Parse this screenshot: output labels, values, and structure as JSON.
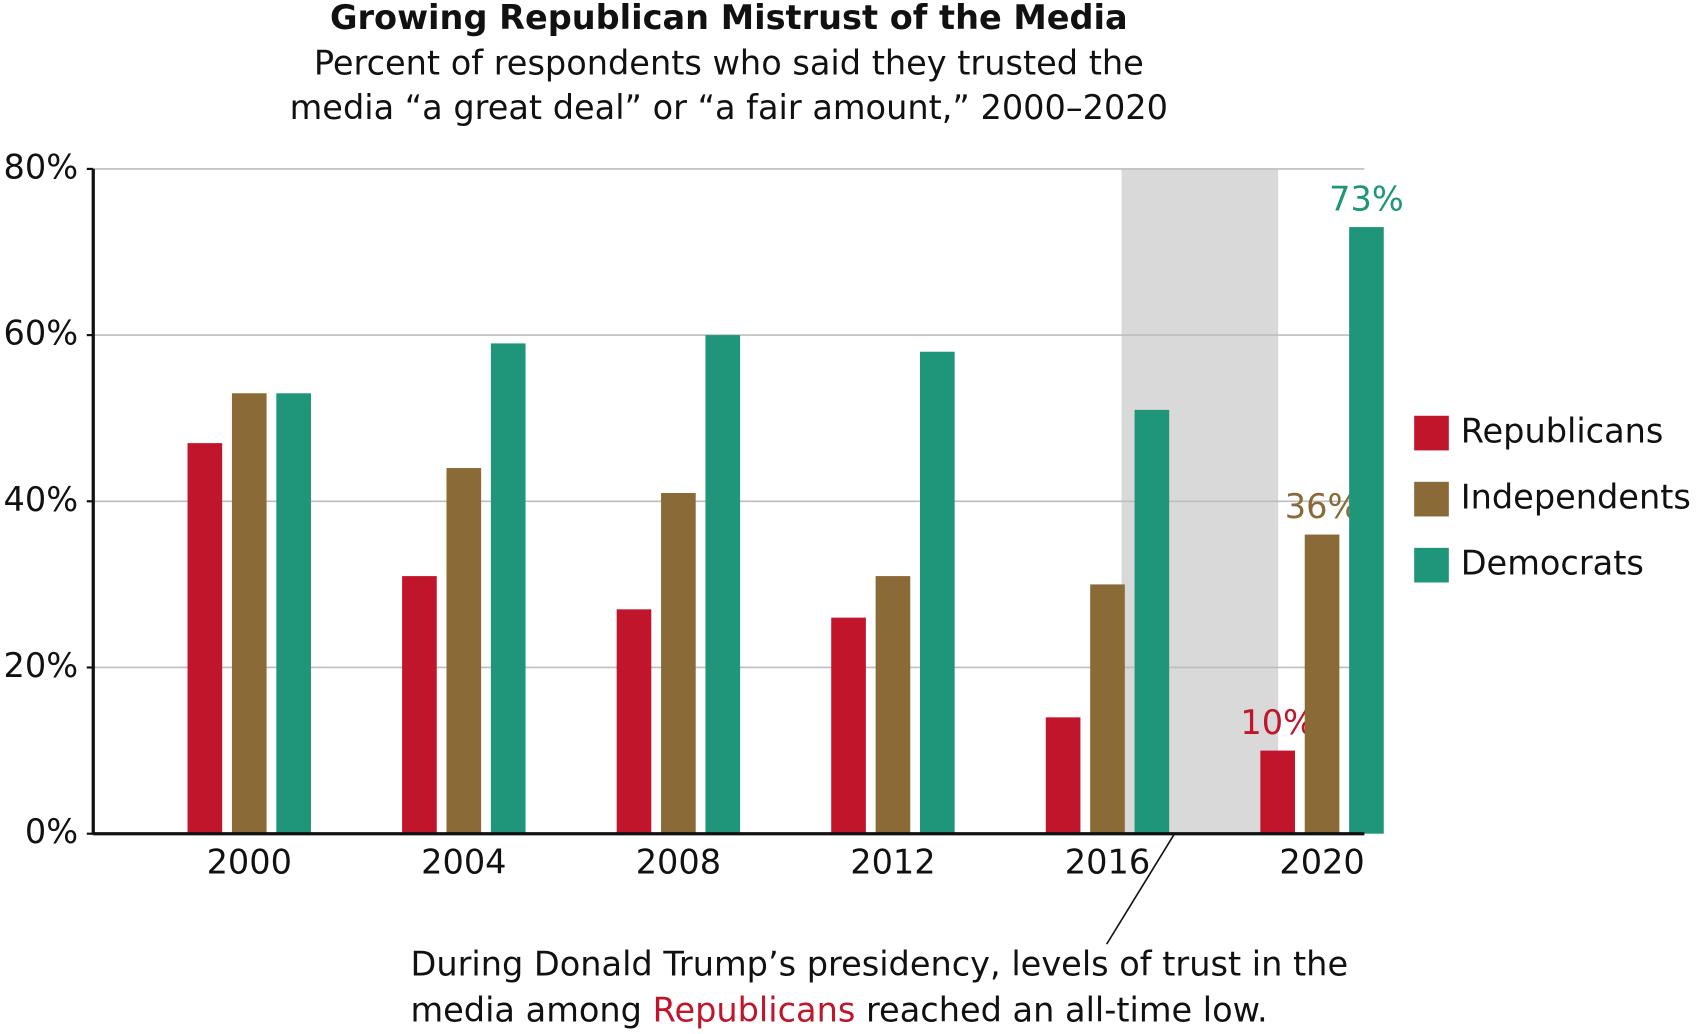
{
  "chart_data": {
    "type": "bar",
    "title": "Growing Republican Mistrust of the Media",
    "subtitle": [
      "Percent of respondents who said they trusted the",
      "media “a great deal” or “a fair amount,” 2000–2020"
    ],
    "categories": [
      "2000",
      "2004",
      "2008",
      "2012",
      "2016",
      "2020"
    ],
    "series": [
      {
        "name": "Republicans",
        "color": "#c0152a",
        "values": [
          47,
          31,
          27,
          26,
          14,
          10
        ],
        "value_labels": [
          null,
          null,
          null,
          null,
          null,
          "10%"
        ]
      },
      {
        "name": "Independents",
        "color": "#8a6a37",
        "values": [
          53,
          44,
          41,
          31,
          30,
          36
        ],
        "value_labels": [
          null,
          null,
          null,
          null,
          null,
          "36%"
        ]
      },
      {
        "name": "Democrats",
        "color": "#1f967a",
        "values": [
          53,
          59,
          60,
          58,
          51,
          73
        ],
        "value_labels": [
          null,
          null,
          null,
          null,
          null,
          "73%"
        ]
      }
    ],
    "ylim": [
      0,
      80
    ],
    "yticks": [
      {
        "value": 0,
        "label": "0%"
      },
      {
        "value": 20,
        "label": "20%"
      },
      {
        "value": 40,
        "label": "40%"
      },
      {
        "value": 60,
        "label": "60%"
      },
      {
        "value": 80,
        "label": "80%"
      }
    ],
    "grid": true,
    "legend": "right",
    "annotation": [
      "During Donald Trump’s presidency, levels of trust in the",
      "media among",
      "Republicans",
      "reached an all-time low."
    ]
  }
}
